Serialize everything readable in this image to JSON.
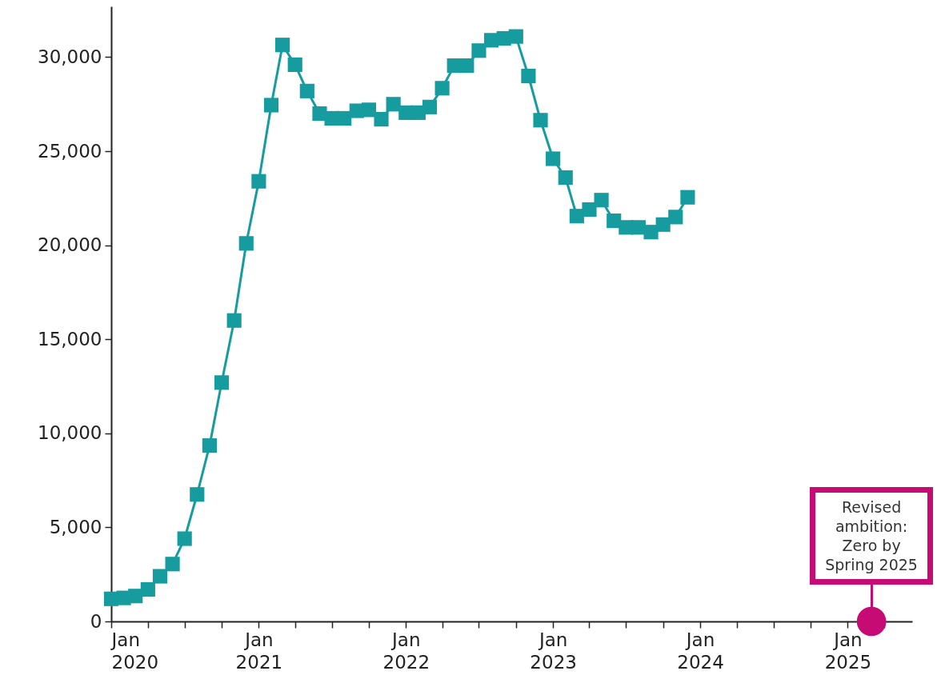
{
  "chart_data": {
    "type": "line",
    "line_style": "solid",
    "x": [
      "2020-01",
      "2020-02",
      "2020-03",
      "2020-04",
      "2020-05",
      "2020-06",
      "2020-07",
      "2020-08",
      "2020-09",
      "2020-10",
      "2020-11",
      "2020-12",
      "2021-01",
      "2021-02",
      "2021-03",
      "2021-04",
      "2021-05",
      "2021-06",
      "2021-07",
      "2021-08",
      "2021-09",
      "2021-10",
      "2021-11",
      "2021-12",
      "2022-01",
      "2022-02",
      "2022-03",
      "2022-04",
      "2022-05",
      "2022-06",
      "2022-07",
      "2022-08",
      "2022-09",
      "2022-10",
      "2022-11",
      "2022-12",
      "2023-01",
      "2023-02",
      "2023-03",
      "2023-04",
      "2023-05",
      "2023-06",
      "2023-07",
      "2023-08",
      "2023-09",
      "2023-10",
      "2023-11",
      "2023-12"
    ],
    "series": [
      {
        "marker": "square",
        "color": "#169c9f",
        "values": [
          1200,
          1250,
          1350,
          1700,
          2400,
          3050,
          4400,
          6750,
          9350,
          12700,
          16000,
          20100,
          23400,
          27450,
          30650,
          29600,
          28200,
          27000,
          26750,
          26750,
          27150,
          27200,
          26700,
          27500,
          27050,
          27050,
          27350,
          28350,
          29550,
          29550,
          30350,
          30900,
          31000,
          31100,
          29000,
          26650,
          24600,
          23600,
          21550,
          21900,
          22400,
          21300,
          20950,
          20950,
          20700,
          21100,
          21500,
          22550
        ]
      },
      {
        "type": "scatter",
        "marker": "circle",
        "color": "#c70b74",
        "x": [
          "2025-03"
        ],
        "values": [
          0
        ]
      }
    ],
    "ylim": [
      0,
      32700
    ],
    "yticks": [
      0,
      {
        "value": 5000,
        "label": "5,000"
      },
      {
        "value": 10000,
        "label": "10,000"
      },
      {
        "value": 15000,
        "label": "15,000"
      },
      {
        "value": 20000,
        "label": "20,000"
      },
      {
        "value": 25000,
        "label": "25,000"
      },
      {
        "value": 30000,
        "label": "30,000"
      }
    ],
    "xlim": [
      "2020-01",
      "2025-06-10"
    ],
    "xticks": [
      {
        "value": "2020-01",
        "label": "Jan 2020"
      },
      {
        "value": "2020-04",
        "label": null
      },
      {
        "value": "2020-07",
        "label": null
      },
      {
        "value": "2020-10",
        "label": null
      },
      {
        "value": "2021-01",
        "label": "Jan 2021"
      },
      {
        "value": "2021-04",
        "label": null
      },
      {
        "value": "2021-07",
        "label": null
      },
      {
        "value": "2021-10",
        "label": null
      },
      {
        "value": "2022-01",
        "label": "Jan 2022"
      },
      {
        "value": "2022-04",
        "label": null
      },
      {
        "value": "2022-07",
        "label": null
      },
      {
        "value": "2022-10",
        "label": null
      },
      {
        "value": "2023-01",
        "label": "Jan 2023"
      },
      {
        "value": "2023-04",
        "label": null
      },
      {
        "value": "2023-07",
        "label": null
      },
      {
        "value": "2023-10",
        "label": null
      },
      {
        "value": "2024-01",
        "label": "Jan 2024"
      },
      {
        "value": "2024-04",
        "label": null
      },
      {
        "value": "2024-07",
        "label": null
      },
      {
        "value": "2024-10",
        "label": null
      },
      {
        "value": "2025-01",
        "label": "Jan 2025"
      },
      {
        "value": "2025-04",
        "label": null
      }
    ],
    "annotations": [
      "Revised ambition: Zero by Spring 2025"
    ]
  }
}
